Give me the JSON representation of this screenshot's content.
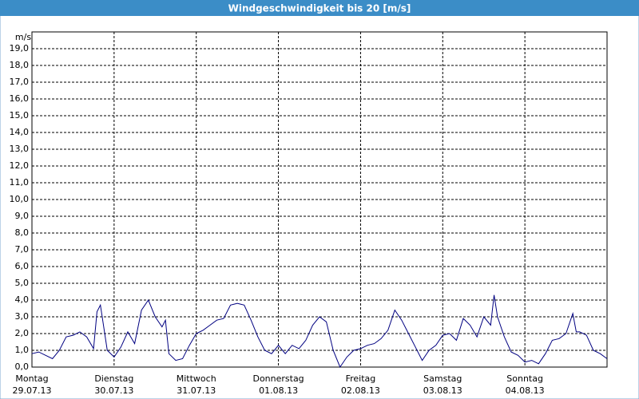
{
  "chart_data": {
    "type": "line",
    "title": "Windgeschwindigkeit bis 20 [m/s]",
    "y_unit": "m/s",
    "x": [
      0,
      2,
      4,
      6,
      8,
      10,
      12,
      14,
      16,
      18,
      19,
      20,
      22,
      24,
      26,
      28,
      30,
      32,
      34,
      36,
      38,
      39,
      40,
      42,
      44,
      46,
      48,
      50,
      52,
      54,
      56,
      58,
      60,
      62,
      64,
      66,
      68,
      70,
      72,
      74,
      76,
      78,
      80,
      82,
      84,
      86,
      88,
      90,
      92,
      94,
      96,
      98,
      100,
      102,
      104,
      106,
      108,
      110,
      112,
      114,
      116,
      118,
      120,
      122,
      124,
      126,
      128,
      130,
      132,
      134,
      135,
      136,
      138,
      140,
      142,
      144,
      146,
      148,
      150,
      152,
      154,
      156,
      158,
      159,
      160,
      162,
      164,
      166,
      168
    ],
    "series": [
      {
        "color": "#000080",
        "values": [
          0.8,
          0.9,
          0.7,
          0.5,
          1.0,
          1.8,
          1.9,
          2.1,
          1.8,
          1.1,
          3.3,
          3.7,
          1.0,
          0.6,
          1.2,
          2.1,
          1.4,
          3.4,
          4.0,
          3.0,
          2.4,
          2.8,
          0.8,
          0.4,
          0.5,
          1.3,
          2.0,
          2.2,
          2.5,
          2.8,
          2.9,
          3.7,
          3.8,
          3.7,
          2.8,
          1.8,
          1.0,
          0.8,
          1.3,
          0.8,
          1.3,
          1.1,
          1.6,
          2.5,
          3.0,
          2.7,
          1.0,
          0.0,
          0.6,
          1.0,
          1.1,
          1.3,
          1.4,
          1.7,
          2.2,
          3.4,
          2.8,
          2.0,
          1.2,
          0.4,
          1.0,
          1.3,
          1.9,
          2.0,
          1.6,
          2.9,
          2.5,
          1.8,
          3.0,
          2.5,
          4.3,
          3.0,
          1.8,
          0.9,
          0.7,
          0.3,
          0.4,
          0.2,
          0.8,
          1.6,
          1.7,
          2.0,
          3.2,
          2.1,
          2.1,
          1.9,
          1.0,
          0.8,
          0.5
        ]
      }
    ],
    "xlim": [
      0,
      168
    ],
    "xticks": [
      {
        "value": 0,
        "label": "Montag",
        "date": "29.07.13"
      },
      {
        "value": 24,
        "label": "Dienstag",
        "date": "30.07.13"
      },
      {
        "value": 48,
        "label": "Mittwoch",
        "date": "31.07.13"
      },
      {
        "value": 72,
        "label": "Donnerstag",
        "date": "01.08.13"
      },
      {
        "value": 96,
        "label": "Freitag",
        "date": "02.08.13"
      },
      {
        "value": 120,
        "label": "Samstag",
        "date": "03.08.13"
      },
      {
        "value": 144,
        "label": "Sonntag",
        "date": "04.08.13"
      }
    ],
    "ylim": [
      0,
      20
    ],
    "yticks": [
      {
        "value": 0,
        "label": "0,0"
      },
      {
        "value": 1,
        "label": "1,0"
      },
      {
        "value": 2,
        "label": "2,0"
      },
      {
        "value": 3,
        "label": "3,0"
      },
      {
        "value": 4,
        "label": "4,0"
      },
      {
        "value": 5,
        "label": "5,0"
      },
      {
        "value": 6,
        "label": "6,0"
      },
      {
        "value": 7,
        "label": "7,0"
      },
      {
        "value": 8,
        "label": "8,0"
      },
      {
        "value": 9,
        "label": "9,0"
      },
      {
        "value": 10,
        "label": "10,0"
      },
      {
        "value": 11,
        "label": "11,0"
      },
      {
        "value": 12,
        "label": "12,0"
      },
      {
        "value": 13,
        "label": "13,0"
      },
      {
        "value": 14,
        "label": "14,0"
      },
      {
        "value": 15,
        "label": "15,0"
      },
      {
        "value": 16,
        "label": "16,0"
      },
      {
        "value": 17,
        "label": "17,0"
      },
      {
        "value": 18,
        "label": "18,0"
      },
      {
        "value": 19,
        "label": "19,0"
      }
    ],
    "grid": true
  }
}
